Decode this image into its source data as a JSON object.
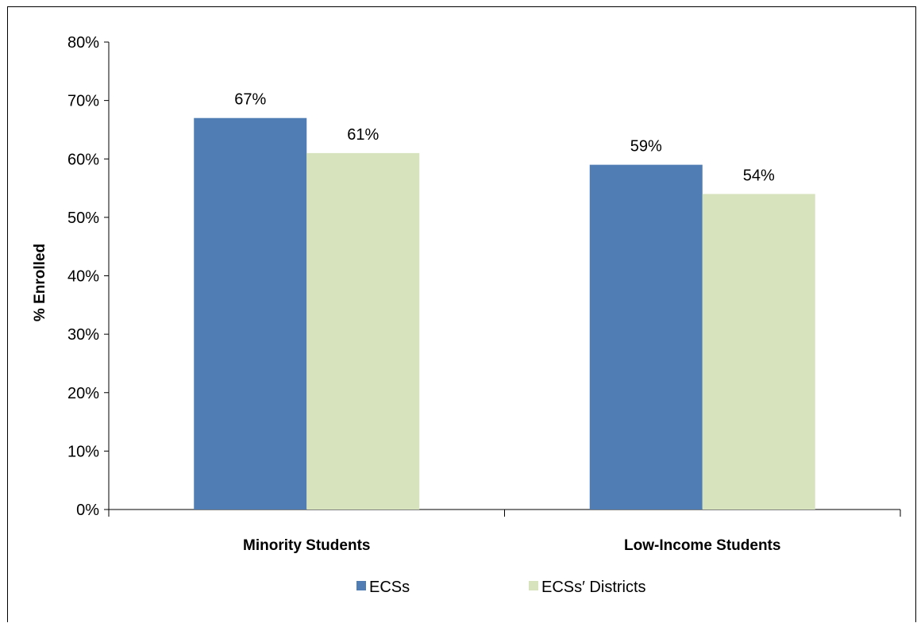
{
  "chart_data": {
    "type": "bar",
    "categories": [
      "Minority Students",
      "Low-Income Students"
    ],
    "series": [
      {
        "name": "ECSs",
        "values": [
          67,
          59
        ],
        "color": "#4f7db4",
        "labels": [
          "67%",
          "59%"
        ]
      },
      {
        "name": "ECSs′ Districts",
        "values": [
          61,
          54
        ],
        "color": "#d7e3bc",
        "labels": [
          "61%",
          "54%"
        ]
      }
    ],
    "ylabel": "% Enrolled",
    "xlabel": "",
    "ylim": [
      0,
      80
    ],
    "yticks": [
      0,
      10,
      20,
      30,
      40,
      50,
      60,
      70,
      80
    ],
    "ytick_labels": [
      "0%",
      "10%",
      "20%",
      "30%",
      "40%",
      "50%",
      "60%",
      "70%",
      "80%"
    ],
    "grid": false,
    "legend_position": "bottom"
  }
}
